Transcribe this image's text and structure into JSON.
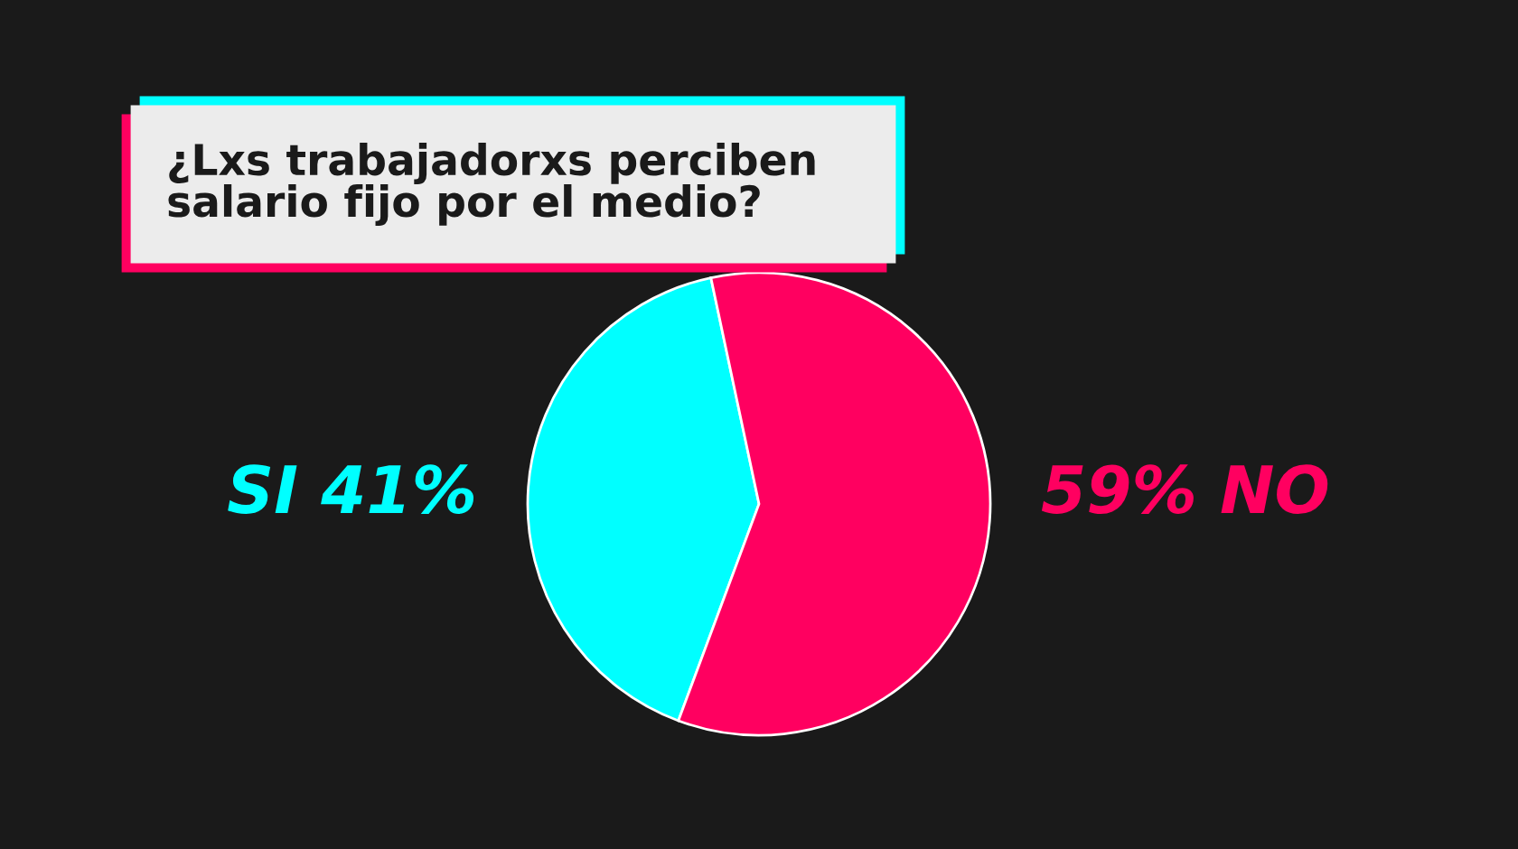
{
  "chart_data": {
    "type": "pie",
    "title": "¿Lxs trabajadorxs perciben\nsalario fijo por el medio?",
    "categories": [
      "SI",
      "NO"
    ],
    "values": [
      41,
      59
    ],
    "value_labels": [
      "41%",
      "59%"
    ],
    "colors": [
      "#00ffff",
      "#ff0060"
    ]
  }
}
